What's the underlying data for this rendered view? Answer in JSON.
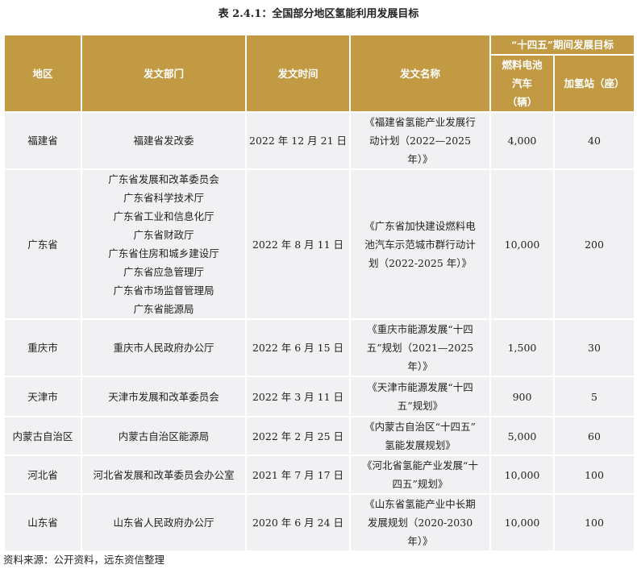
{
  "title": "表 2.4.1：全国部分地区氢能利用发展目标",
  "colors": {
    "header_bg": "#c19a43",
    "row_bg": "#f1f0f3",
    "header_text": "#ffffff"
  },
  "headers": {
    "region": "地区",
    "department": "发文部门",
    "date": "发文时间",
    "document": "发文名称",
    "target_group": "“十四五”期间发展目标",
    "vehicles": [
      "燃料电池",
      "汽车",
      "（辆）"
    ],
    "stations": "加氢站（座）"
  },
  "rows": [
    {
      "region": "福建省",
      "department": [
        "福建省发改委"
      ],
      "date": "2022 年 12 月 21 日",
      "document": [
        "《福建省氢能产业发展行",
        "动计划（2022—2025",
        "年）》"
      ],
      "vehicles": "4,000",
      "stations": "40"
    },
    {
      "region": "广东省",
      "department": [
        "广东省发展和改革委员会",
        "广东省科学技术厅",
        "广东省工业和信息化厅",
        "广东省财政厅",
        "广东省住房和城乡建设厅",
        "广东省应急管理厅",
        "广东省市场监督管理局",
        "广东省能源局"
      ],
      "date": "2022 年 8 月 11 日",
      "document": [
        "《广东省加快建设燃料电",
        "池汽车示范城市群行动计",
        "划（2022-2025 年）》"
      ],
      "vehicles": "10,000",
      "stations": "200"
    },
    {
      "region": "重庆市",
      "department": [
        "重庆市人民政府办公厅"
      ],
      "date": "2022 年 6 月 15 日",
      "document": [
        "《重庆市能源发展“十四",
        "五”规划（2021—2025",
        "年）》"
      ],
      "vehicles": "1,500",
      "stations": "30"
    },
    {
      "region": "天津市",
      "department": [
        "天津市发展和改革委员会"
      ],
      "date": "2022 年 3 月 11 日",
      "document": [
        "《天津市能源发展“十四",
        "五”规划》"
      ],
      "vehicles": "900",
      "stations": "5"
    },
    {
      "region": "内蒙古自治区",
      "department": [
        "内蒙古自治区能源局"
      ],
      "date": "2022 年 2 月 25 日",
      "document": [
        "《内蒙古自治区“十四五”",
        "氢能发展规划》"
      ],
      "vehicles": "5,000",
      "stations": "60"
    },
    {
      "region": "河北省",
      "department": [
        "河北省发展和改革委员会办公室"
      ],
      "date": "2021 年 7 月 17 日",
      "document": [
        "《河北省氢能产业发展“十",
        "四五”规划》"
      ],
      "vehicles": "10,000",
      "stations": "100"
    },
    {
      "region": "山东省",
      "department": [
        "山东省人民政府办公厅"
      ],
      "date": "2020 年 6 月 24 日",
      "document": [
        "《山东省氢能产业中长期",
        "发展规划（2020-2030",
        "年）》"
      ],
      "vehicles": "10,000",
      "stations": "100"
    }
  ],
  "source": "资料来源：公开资料，远东资信整理"
}
